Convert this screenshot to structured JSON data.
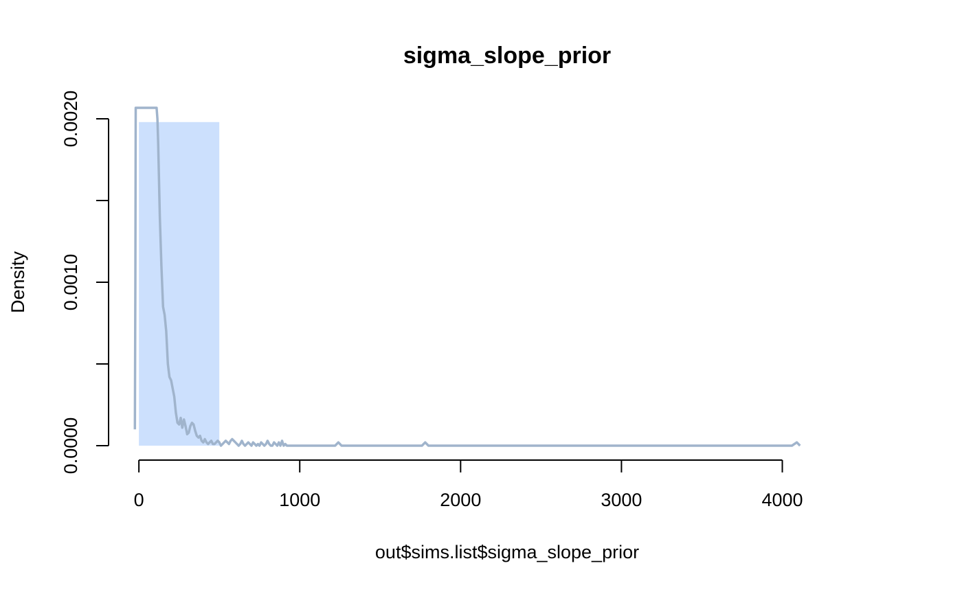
{
  "chart_data": {
    "type": "histogram",
    "title": "sigma_slope_prior",
    "xlabel": "out$sims.list$sigma_slope_prior",
    "ylabel": "Density",
    "xlim": [
      -180,
      4220
    ],
    "ylim": [
      0,
      0.002
    ],
    "x_ticks": [
      0,
      1000,
      2000,
      3000,
      4000
    ],
    "x_tick_labels": [
      "0",
      "1000",
      "2000",
      "3000",
      "4000"
    ],
    "y_ticks": [
      0,
      0.0005,
      0.001,
      0.0015,
      0.002
    ],
    "y_tick_labels": [
      "0.0000",
      "",
      "0.0010",
      "",
      "0.0020"
    ],
    "bars": [
      {
        "x0": 0,
        "x1": 500,
        "density": 0.00198
      }
    ],
    "density_line": {
      "x": [
        -25,
        -22,
        -20,
        110,
        115,
        120,
        130,
        140,
        150,
        160,
        170,
        180,
        190,
        200,
        210,
        220,
        230,
        240,
        250,
        260,
        270,
        280,
        290,
        300,
        310,
        320,
        330,
        340,
        350,
        360,
        370,
        380,
        390,
        400,
        410,
        420,
        430,
        440,
        450,
        460,
        470,
        480,
        490,
        500,
        510,
        520,
        530,
        540,
        550,
        560,
        570,
        580,
        590,
        600,
        610,
        620,
        630,
        640,
        650,
        660,
        670,
        680,
        690,
        700,
        710,
        720,
        730,
        740,
        750,
        760,
        770,
        780,
        790,
        800,
        810,
        820,
        830,
        840,
        850,
        860,
        870,
        880,
        890,
        900,
        910,
        920,
        930,
        940,
        1000,
        1100,
        1200,
        1220,
        1240,
        1260,
        1300,
        1400,
        1600,
        1760,
        1780,
        1800,
        2000,
        2500,
        3000,
        3500,
        4000,
        4060,
        4090,
        4110
      ],
      "y": [
        0.0001,
        0.001,
        0.00207,
        0.00207,
        0.002,
        0.00185,
        0.0014,
        0.0011,
        0.00085,
        0.0008,
        0.0007,
        0.0005,
        0.00042,
        0.0004,
        0.00035,
        0.0003,
        0.0002,
        0.00014,
        0.00013,
        0.00017,
        0.00011,
        0.00016,
        0.00012,
        7e-05,
        8e-05,
        0.00012,
        0.00014,
        0.00013,
        9e-05,
        6e-05,
        5e-05,
        6e-05,
        3e-05,
        2e-05,
        4e-05,
        2e-05,
        1e-05,
        2e-05,
        3e-05,
        1e-05,
        1e-05,
        2e-05,
        3e-05,
        2e-05,
        0.0,
        1e-05,
        2e-05,
        3e-05,
        2e-05,
        1e-05,
        3e-05,
        4e-05,
        3e-05,
        2e-05,
        1e-05,
        0.0,
        1e-05,
        3e-05,
        1e-05,
        0.0,
        1e-05,
        2e-05,
        1e-05,
        0.0,
        2e-05,
        1e-05,
        0.0,
        1e-05,
        0.0,
        2e-05,
        1e-05,
        0.0,
        1e-05,
        3e-05,
        1e-05,
        0.0,
        0.0,
        2e-05,
        1e-05,
        0.0,
        2e-05,
        0.0,
        3e-05,
        0.0,
        1e-05,
        0.0,
        0.0,
        0.0,
        0.0,
        0.0,
        0.0,
        0.0,
        2e-05,
        0.0,
        0.0,
        0.0,
        0.0,
        0.0,
        2e-05,
        0.0,
        0.0,
        0.0,
        0.0,
        0.0,
        0.0,
        0.0,
        2e-05,
        0.0
      ]
    },
    "colors": {
      "bar": "#cce0fd",
      "line": "#a0b4cc",
      "axis": "#000000"
    }
  }
}
